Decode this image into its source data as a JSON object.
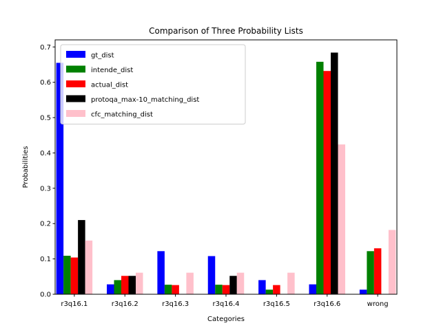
{
  "chart_data": {
    "type": "bar",
    "title": "Comparison of Three Probability Lists",
    "xlabel": "Categories",
    "ylabel": "Probabilities",
    "ylim": [
      0,
      0.72
    ],
    "yticks": [
      "0.0",
      "0.1",
      "0.2",
      "0.3",
      "0.4",
      "0.5",
      "0.6",
      "0.7"
    ],
    "categories": [
      "r3q16.1",
      "r3q16.2",
      "r3q16.3",
      "r3q16.4",
      "r3q16.5",
      "r3q16.6",
      "wrong"
    ],
    "legend_position": "top-left",
    "series": [
      {
        "name": "gt_dist",
        "color": "#0000ff",
        "values": [
          0.655,
          0.028,
          0.122,
          0.108,
          0.04,
          0.028,
          0.013
        ]
      },
      {
        "name": "intende_dist",
        "color": "#008000",
        "values": [
          0.109,
          0.04,
          0.027,
          0.027,
          0.013,
          0.658,
          0.122
        ]
      },
      {
        "name": "actual_dist",
        "color": "#ff0000",
        "values": [
          0.104,
          0.052,
          0.026,
          0.026,
          0.026,
          0.632,
          0.13
        ]
      },
      {
        "name": "protoqa_max-10_matching_dist",
        "color": "#000000",
        "values": [
          0.21,
          0.052,
          0.0,
          0.052,
          0.0,
          0.684,
          0.0
        ]
      },
      {
        "name": "cfc_matching_dist",
        "color": "#ffc0cb",
        "values": [
          0.152,
          0.061,
          0.061,
          0.061,
          0.061,
          0.424,
          0.182
        ]
      }
    ]
  }
}
